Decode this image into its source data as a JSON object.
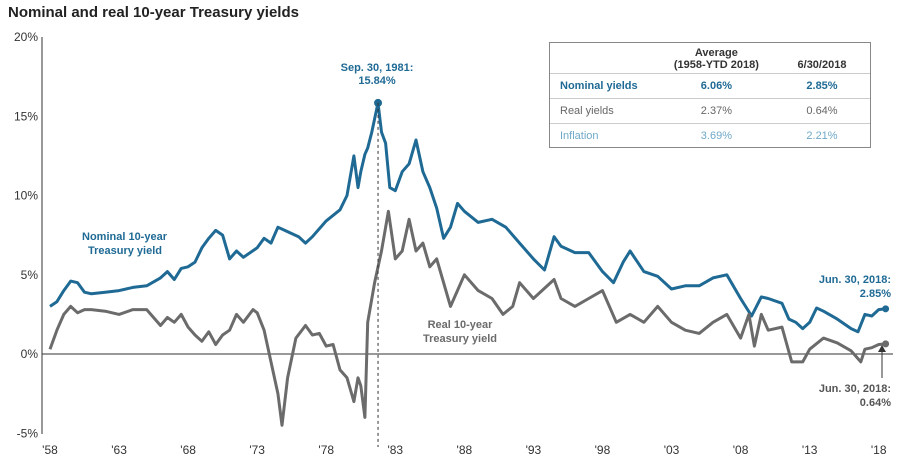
{
  "title": "Nominal and real 10-year Treasury yields",
  "colors": {
    "nominal": "#1f6a95",
    "real": "#6b6b6b",
    "inflation": "#6fa8c8",
    "axis": "#333333"
  },
  "annotations": {
    "peak_line1": "Sep. 30, 1981:",
    "peak_line2": "15.84%",
    "nominal_label1": "Nominal 10-year",
    "nominal_label2": "Treasury yield",
    "real_label1": "Real 10-year",
    "real_label2": "Treasury yield",
    "nominal_end1": "Jun. 30, 2018:",
    "nominal_end2": "2.85%",
    "real_end1": "Jun. 30, 2018:",
    "real_end2": "0.64%"
  },
  "table": {
    "headers": {
      "col1_line1": "Average",
      "col1_line2": "(1958-YTD 2018)",
      "col2": "6/30/2018"
    },
    "rows": [
      {
        "label": "Nominal yields",
        "average": "6.06%",
        "current": "2.85%"
      },
      {
        "label": "Real yields",
        "average": "2.37%",
        "current": "0.64%"
      },
      {
        "label": "Inflation",
        "average": "3.69%",
        "current": "2.21%"
      }
    ]
  },
  "chart_data": {
    "type": "line",
    "title": "Nominal and real 10-year Treasury yields",
    "xlabel": "",
    "ylabel": "",
    "xlim": [
      1958,
      2018.6
    ],
    "ylim": [
      -5,
      20
    ],
    "x_ticks": [
      "'58",
      "'63",
      "'68",
      "'73",
      "'78",
      "'83",
      "'88",
      "'93",
      "'98",
      "'03",
      "'08",
      "'13",
      "'18"
    ],
    "y_ticks": [
      "20%",
      "15%",
      "10%",
      "5%",
      "0%",
      "-5%"
    ],
    "grid": false,
    "series": [
      {
        "name": "Nominal 10-year Treasury yield",
        "x": [
          1958.0,
          1958.5,
          1959.0,
          1959.5,
          1960.0,
          1960.5,
          1961.0,
          1962.0,
          1963.0,
          1964.0,
          1965.0,
          1966.0,
          1966.5,
          1967.0,
          1967.5,
          1968.0,
          1968.5,
          1969.0,
          1969.5,
          1970.0,
          1970.5,
          1971.0,
          1971.5,
          1972.0,
          1973.0,
          1973.5,
          1974.0,
          1974.5,
          1975.0,
          1976.0,
          1976.5,
          1977.0,
          1978.0,
          1979.0,
          1979.5,
          1980.0,
          1980.3,
          1980.5,
          1980.8,
          1981.0,
          1981.3,
          1981.75,
          1982.0,
          1982.3,
          1982.6,
          1983.0,
          1983.5,
          1984.0,
          1984.5,
          1985.0,
          1985.5,
          1986.0,
          1986.5,
          1987.0,
          1987.5,
          1988.0,
          1989.0,
          1990.0,
          1991.0,
          1992.0,
          1993.0,
          1993.8,
          1994.5,
          1995.0,
          1996.0,
          1997.0,
          1998.0,
          1998.8,
          1999.5,
          2000.0,
          2001.0,
          2002.0,
          2003.0,
          2004.0,
          2005.0,
          2006.0,
          2007.0,
          2008.0,
          2008.8,
          2009.5,
          2010.0,
          2011.0,
          2011.5,
          2012.0,
          2012.5,
          2013.0,
          2013.5,
          2014.0,
          2015.0,
          2016.0,
          2016.5,
          2017.0,
          2017.5,
          2018.0,
          2018.5
        ],
        "values": [
          3.0,
          3.3,
          4.0,
          4.6,
          4.5,
          3.9,
          3.8,
          3.9,
          4.0,
          4.2,
          4.3,
          4.8,
          5.2,
          4.7,
          5.4,
          5.5,
          5.8,
          6.7,
          7.3,
          7.8,
          7.5,
          6.0,
          6.5,
          6.1,
          6.7,
          7.3,
          7.0,
          8.0,
          7.8,
          7.4,
          7.0,
          7.4,
          8.4,
          9.1,
          10.0,
          12.5,
          10.5,
          11.5,
          12.6,
          13.0,
          14.0,
          15.84,
          14.0,
          13.3,
          10.5,
          10.3,
          11.5,
          12.0,
          13.5,
          11.5,
          10.5,
          9.2,
          7.3,
          8.0,
          9.5,
          9.0,
          8.3,
          8.5,
          8.0,
          7.0,
          6.0,
          5.3,
          7.4,
          6.8,
          6.4,
          6.4,
          5.2,
          4.5,
          5.8,
          6.5,
          5.2,
          4.9,
          4.1,
          4.3,
          4.3,
          4.8,
          5.0,
          3.5,
          2.4,
          3.6,
          3.5,
          3.2,
          2.2,
          2.0,
          1.6,
          2.0,
          2.9,
          2.7,
          2.2,
          1.6,
          1.4,
          2.5,
          2.4,
          2.8,
          2.85
        ]
      },
      {
        "name": "Real 10-year Treasury yield",
        "x": [
          1958.0,
          1958.5,
          1959.0,
          1959.5,
          1960.0,
          1960.5,
          1961.0,
          1962.0,
          1963.0,
          1964.0,
          1965.0,
          1966.0,
          1966.5,
          1967.0,
          1967.5,
          1968.0,
          1968.5,
          1969.0,
          1969.5,
          1970.0,
          1970.5,
          1971.0,
          1971.5,
          1972.0,
          1972.7,
          1973.0,
          1973.5,
          1974.0,
          1974.5,
          1974.8,
          1975.2,
          1975.8,
          1976.5,
          1977.0,
          1977.5,
          1978.0,
          1978.5,
          1979.0,
          1979.5,
          1980.0,
          1980.3,
          1980.5,
          1980.8,
          1981.0,
          1981.5,
          1982.0,
          1982.5,
          1983.0,
          1983.5,
          1984.0,
          1984.5,
          1985.0,
          1985.5,
          1986.0,
          1986.5,
          1987.0,
          1988.0,
          1989.0,
          1990.0,
          1990.8,
          1991.5,
          1992.0,
          1993.0,
          1994.5,
          1995.0,
          1996.0,
          1997.0,
          1998.0,
          1999.0,
          2000.0,
          2001.0,
          2002.0,
          2003.0,
          2004.0,
          2005.0,
          2006.0,
          2007.0,
          2008.0,
          2008.6,
          2009.0,
          2009.5,
          2010.0,
          2011.0,
          2011.7,
          2012.5,
          2013.0,
          2014.0,
          2015.0,
          2016.0,
          2016.7,
          2017.0,
          2017.5,
          2018.0,
          2018.5
        ],
        "values": [
          0.3,
          1.5,
          2.5,
          3.0,
          2.6,
          2.8,
          2.8,
          2.7,
          2.5,
          2.8,
          2.8,
          1.8,
          2.3,
          2.0,
          2.5,
          1.7,
          1.2,
          0.8,
          1.4,
          0.6,
          1.2,
          1.5,
          2.5,
          2.0,
          2.8,
          2.6,
          1.5,
          -0.5,
          -2.5,
          -4.5,
          -1.5,
          1.0,
          1.8,
          1.2,
          1.3,
          0.5,
          0.6,
          -1.0,
          -1.5,
          -3.0,
          -1.5,
          -2.0,
          -4.0,
          2.0,
          4.5,
          6.5,
          9.0,
          6.0,
          6.5,
          8.5,
          6.5,
          7.0,
          5.5,
          6.0,
          4.5,
          3.0,
          5.0,
          4.0,
          3.5,
          2.5,
          3.0,
          4.5,
          3.5,
          4.7,
          3.5,
          3.0,
          3.5,
          4.0,
          2.0,
          2.5,
          2.0,
          3.0,
          2.0,
          1.5,
          1.3,
          2.0,
          2.5,
          1.0,
          2.5,
          0.5,
          2.5,
          1.5,
          1.7,
          -0.5,
          -0.5,
          0.3,
          1.0,
          0.7,
          0.2,
          -0.5,
          0.3,
          0.4,
          0.6,
          0.64
        ]
      }
    ],
    "annotations": [
      {
        "text": "Sep. 30, 1981: 15.84%",
        "x": 1981.75,
        "y": 15.84
      },
      {
        "text": "Jun. 30, 2018: 2.85%",
        "x": 2018.5,
        "y": 2.85
      },
      {
        "text": "Jun. 30, 2018: 0.64%",
        "x": 2018.5,
        "y": 0.64
      }
    ]
  }
}
